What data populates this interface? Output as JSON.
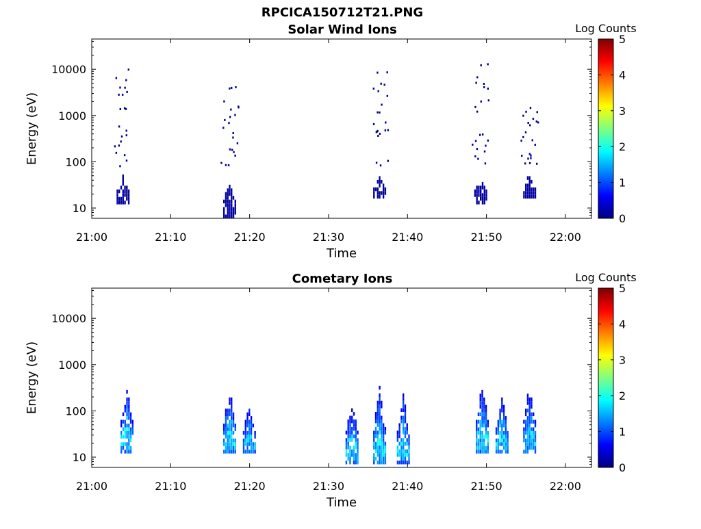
{
  "figure_title": "RPCICA150712T21.PNG",
  "colorscale": {
    "stops": [
      "#00007f",
      "#0000ff",
      "#007fff",
      "#00ffff",
      "#7fff7f",
      "#ffff00",
      "#ff7f00",
      "#ff0000",
      "#7f0000"
    ]
  },
  "chart_data": [
    {
      "type": "heatmap",
      "title": "Solar Wind Ions",
      "xlabel": "Time",
      "ylabel": "Energy (eV)",
      "x_ticks": [
        "21:00",
        "21:10",
        "21:20",
        "21:30",
        "21:40",
        "21:50",
        "22:00"
      ],
      "x_tick_minutes": [
        0,
        10,
        20,
        30,
        40,
        50,
        60
      ],
      "xlim_minutes": [
        0,
        63.3
      ],
      "y_scale": "log",
      "ylim": [
        6,
        45000
      ],
      "y_ticks": [
        "10",
        "100",
        "1000",
        "10000"
      ],
      "y_tick_values": [
        10,
        100,
        1000,
        10000
      ],
      "colorbar": {
        "label": "Log Counts",
        "range": [
          0,
          5
        ],
        "ticks": [
          "0",
          "1",
          "2",
          "3",
          "4",
          "5"
        ]
      },
      "bursts": [
        {
          "minute": 4.0,
          "core_energy": [
            12,
            45
          ],
          "scatter_energy": [
            80,
            10000
          ],
          "log_counts": 0.2
        },
        {
          "minute": 17.5,
          "core_energy": [
            6,
            45
          ],
          "scatter_energy": [
            80,
            4500
          ],
          "log_counts": 0.2
        },
        {
          "minute": 36.5,
          "core_energy": [
            16,
            45
          ],
          "scatter_energy": [
            80,
            11000
          ],
          "log_counts": 0.2
        },
        {
          "minute": 49.3,
          "core_energy": [
            12,
            50
          ],
          "scatter_energy": [
            90,
            13000
          ],
          "log_counts": 0.2
        },
        {
          "minute": 55.5,
          "core_energy": [
            16,
            55
          ],
          "scatter_energy": [
            90,
            2400
          ],
          "log_counts": 0.2
        }
      ]
    },
    {
      "type": "heatmap",
      "title": "Cometary Ions",
      "xlabel": "Time",
      "ylabel": "Energy (eV)",
      "x_ticks": [
        "21:00",
        "21:10",
        "21:20",
        "21:30",
        "21:40",
        "21:50",
        "22:00"
      ],
      "x_tick_minutes": [
        0,
        10,
        20,
        30,
        40,
        50,
        60
      ],
      "xlim_minutes": [
        0,
        63.3
      ],
      "y_scale": "log",
      "ylim": [
        6,
        45000
      ],
      "y_ticks": [
        "10",
        "100",
        "1000",
        "10000"
      ],
      "y_tick_values": [
        10,
        100,
        1000,
        10000
      ],
      "colorbar": {
        "label": "Log Counts",
        "range": [
          0,
          5
        ],
        "ticks": [
          "0",
          "1",
          "2",
          "3",
          "4",
          "5"
        ]
      },
      "bursts": [
        {
          "minute": 4.5,
          "core_energy": [
            12,
            450
          ],
          "log_counts": 1.8
        },
        {
          "minute": 17.5,
          "core_energy": [
            12,
            350
          ],
          "log_counts": 1.8
        },
        {
          "minute": 20.0,
          "core_energy": [
            12,
            150
          ],
          "log_counts": 1.6
        },
        {
          "minute": 33.0,
          "core_energy": [
            7,
            250
          ],
          "log_counts": 1.8
        },
        {
          "minute": 36.5,
          "core_energy": [
            7,
            400
          ],
          "log_counts": 1.8
        },
        {
          "minute": 39.5,
          "core_energy": [
            7,
            250
          ],
          "log_counts": 1.8
        },
        {
          "minute": 49.5,
          "core_energy": [
            12,
            600
          ],
          "log_counts": 1.8
        },
        {
          "minute": 52.0,
          "core_energy": [
            12,
            250
          ],
          "log_counts": 1.8
        },
        {
          "minute": 55.5,
          "core_energy": [
            12,
            450
          ],
          "log_counts": 1.7
        }
      ]
    }
  ]
}
